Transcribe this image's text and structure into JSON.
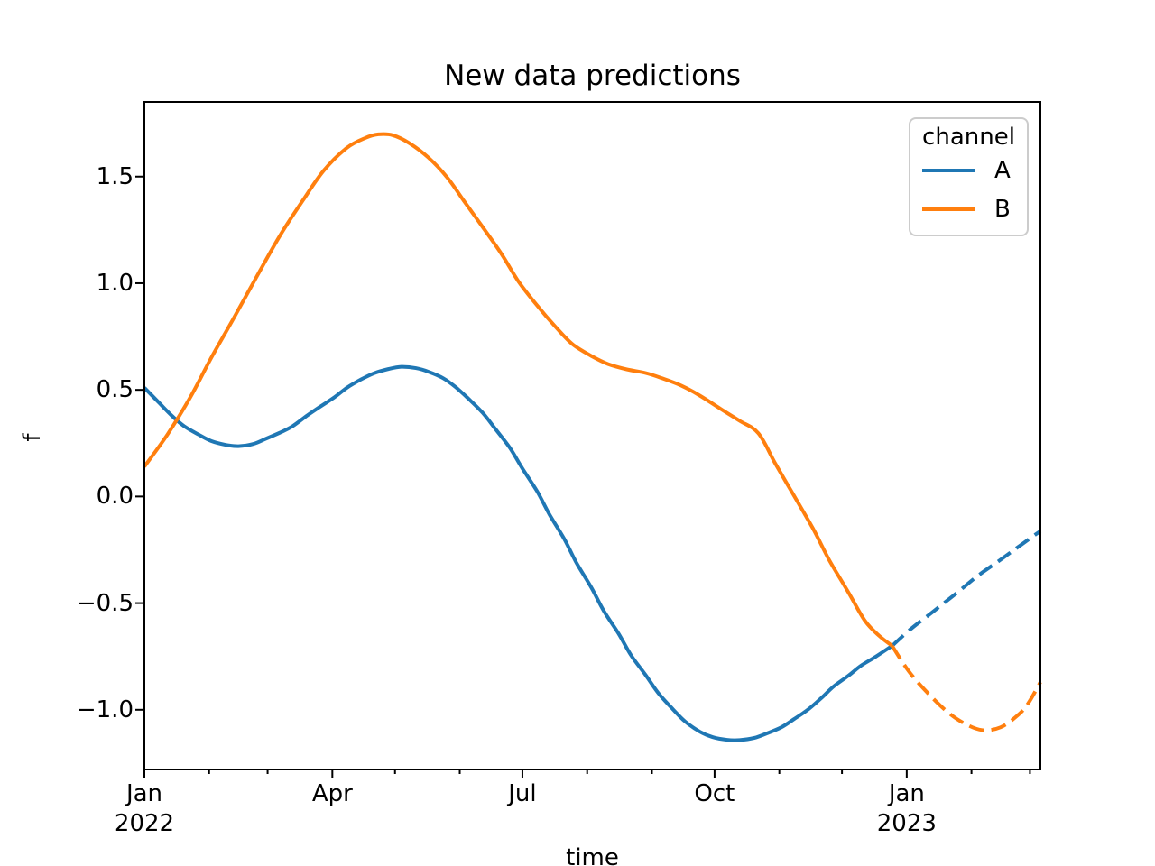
{
  "chart_data": {
    "type": "line",
    "title": "New data predictions",
    "xlabel": "time",
    "ylabel": "f",
    "x_unit": "days since 2022-01-01",
    "xlim": [
      0,
      429
    ],
    "ylim": [
      -1.28,
      1.85
    ],
    "grid": false,
    "axis_color": "#000000",
    "x_major_ticks": [
      {
        "day": 0,
        "label": "Jan\n2022"
      },
      {
        "day": 90,
        "label": "Apr"
      },
      {
        "day": 181,
        "label": "Jul"
      },
      {
        "day": 273,
        "label": "Oct"
      },
      {
        "day": 365,
        "label": "Jan\n2023"
      }
    ],
    "x_minor_tick_days": [
      31,
      59,
      120,
      151,
      212,
      243,
      304,
      334,
      396,
      424
    ],
    "y_ticks": [
      {
        "value": 1.5,
        "label": "1.5"
      },
      {
        "value": 1.0,
        "label": "1.0"
      },
      {
        "value": 0.5,
        "label": "0.5"
      },
      {
        "value": 0.0,
        "label": "0.0"
      },
      {
        "value": -0.5,
        "label": "−0.5"
      },
      {
        "value": -1.0,
        "label": "−1.0"
      }
    ],
    "legend": {
      "title": "channel",
      "entries": [
        {
          "label": "A",
          "color": "#1f77b4"
        },
        {
          "label": "B",
          "color": "#ff7f0e"
        }
      ]
    },
    "series": [
      {
        "name": "A",
        "color": "#1f77b4",
        "style": "solid",
        "points": [
          [
            0,
            0.51
          ],
          [
            7,
            0.44
          ],
          [
            13,
            0.38
          ],
          [
            19,
            0.33
          ],
          [
            26,
            0.29
          ],
          [
            32,
            0.26
          ],
          [
            39,
            0.242
          ],
          [
            45,
            0.236
          ],
          [
            52,
            0.246
          ],
          [
            58,
            0.27
          ],
          [
            65,
            0.3
          ],
          [
            71,
            0.33
          ],
          [
            78,
            0.38
          ],
          [
            84,
            0.42
          ],
          [
            91,
            0.465
          ],
          [
            97,
            0.51
          ],
          [
            104,
            0.55
          ],
          [
            110,
            0.578
          ],
          [
            117,
            0.598
          ],
          [
            123,
            0.608
          ],
          [
            130,
            0.602
          ],
          [
            136,
            0.585
          ],
          [
            143,
            0.555
          ],
          [
            149,
            0.513
          ],
          [
            155,
            0.46
          ],
          [
            162,
            0.392
          ],
          [
            168,
            0.317
          ],
          [
            175,
            0.228
          ],
          [
            181,
            0.131
          ],
          [
            188,
            0.025
          ],
          [
            194,
            -0.085
          ],
          [
            201,
            -0.199
          ],
          [
            207,
            -0.313
          ],
          [
            214,
            -0.427
          ],
          [
            220,
            -0.537
          ],
          [
            227,
            -0.642
          ],
          [
            233,
            -0.744
          ],
          [
            240,
            -0.837
          ],
          [
            246,
            -0.921
          ],
          [
            253,
            -0.997
          ],
          [
            259,
            -1.056
          ],
          [
            266,
            -1.103
          ],
          [
            272,
            -1.128
          ],
          [
            279,
            -1.141
          ],
          [
            285,
            -1.142
          ],
          [
            292,
            -1.132
          ],
          [
            298,
            -1.111
          ],
          [
            305,
            -1.082
          ],
          [
            311,
            -1.044
          ],
          [
            318,
            -0.997
          ],
          [
            324,
            -0.946
          ],
          [
            330,
            -0.891
          ],
          [
            337,
            -0.841
          ],
          [
            343,
            -0.794
          ],
          [
            350,
            -0.752
          ],
          [
            358,
            -0.7
          ]
        ]
      },
      {
        "name": "A forecast",
        "color": "#1f77b4",
        "style": "dashed",
        "points": [
          [
            358,
            -0.7
          ],
          [
            367,
            -0.621
          ],
          [
            378,
            -0.537
          ],
          [
            389,
            -0.452
          ],
          [
            399,
            -0.372
          ],
          [
            410,
            -0.296
          ],
          [
            419,
            -0.232
          ],
          [
            429,
            -0.162
          ]
        ]
      },
      {
        "name": "B",
        "color": "#ff7f0e",
        "style": "solid",
        "points": [
          [
            0,
            0.14
          ],
          [
            11,
            0.29
          ],
          [
            22,
            0.465
          ],
          [
            32,
            0.65
          ],
          [
            43,
            0.84
          ],
          [
            54,
            1.035
          ],
          [
            65,
            1.225
          ],
          [
            76,
            1.39
          ],
          [
            86,
            1.53
          ],
          [
            97,
            1.635
          ],
          [
            106,
            1.682
          ],
          [
            112,
            1.698
          ],
          [
            119,
            1.694
          ],
          [
            127,
            1.656
          ],
          [
            136,
            1.589
          ],
          [
            145,
            1.496
          ],
          [
            153,
            1.386
          ],
          [
            162,
            1.263
          ],
          [
            171,
            1.137
          ],
          [
            179,
            1.01
          ],
          [
            188,
            0.896
          ],
          [
            197,
            0.794
          ],
          [
            205,
            0.714
          ],
          [
            214,
            0.659
          ],
          [
            222,
            0.621
          ],
          [
            231,
            0.596
          ],
          [
            240,
            0.579
          ],
          [
            248,
            0.554
          ],
          [
            257,
            0.52
          ],
          [
            266,
            0.473
          ],
          [
            276,
            0.41
          ],
          [
            285,
            0.355
          ],
          [
            294,
            0.296
          ],
          [
            302,
            0.156
          ],
          [
            311,
            0.004
          ],
          [
            320,
            -0.148
          ],
          [
            328,
            -0.3
          ],
          [
            337,
            -0.448
          ],
          [
            345,
            -0.583
          ],
          [
            352,
            -0.655
          ],
          [
            358,
            -0.7
          ]
        ]
      },
      {
        "name": "B forecast",
        "color": "#ff7f0e",
        "style": "dashed",
        "points": [
          [
            358,
            -0.7
          ],
          [
            366,
            -0.82
          ],
          [
            375,
            -0.921
          ],
          [
            384,
            -1.006
          ],
          [
            392,
            -1.061
          ],
          [
            401,
            -1.095
          ],
          [
            410,
            -1.082
          ],
          [
            418,
            -1.027
          ],
          [
            423,
            -0.972
          ],
          [
            429,
            -0.87
          ]
        ]
      }
    ]
  }
}
